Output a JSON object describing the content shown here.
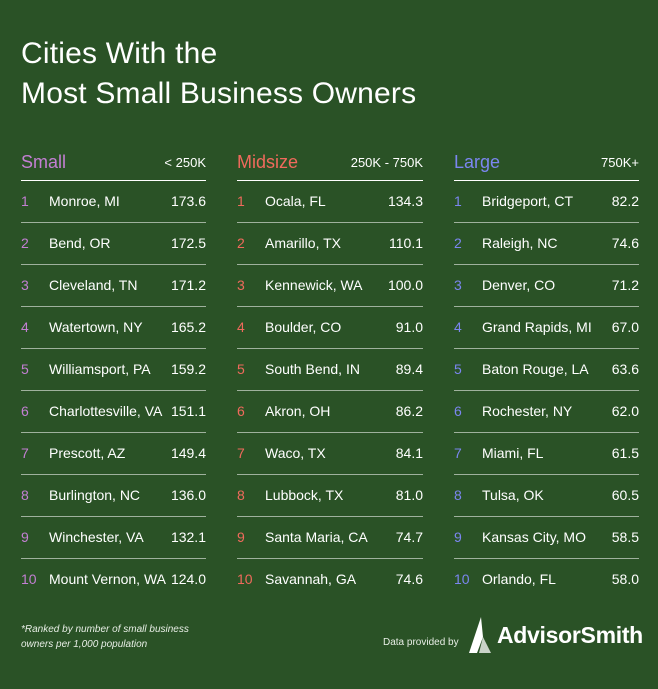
{
  "title_line1": "Cities With the",
  "title_line2": "Most Small Business Owners",
  "chart_data": {
    "type": "table",
    "columns": [
      {
        "name": "Small",
        "range": "< 250K",
        "color": "#c37fd3",
        "rows": [
          {
            "rank": "1",
            "city": "Monroe, MI",
            "value": "173.6"
          },
          {
            "rank": "2",
            "city": "Bend, OR",
            "value": "172.5"
          },
          {
            "rank": "3",
            "city": "Cleveland, TN",
            "value": "171.2"
          },
          {
            "rank": "4",
            "city": "Watertown, NY",
            "value": "165.2"
          },
          {
            "rank": "5",
            "city": "Williamsport, PA",
            "value": "159.2"
          },
          {
            "rank": "6",
            "city": "Charlottesville, VA",
            "value": "151.1"
          },
          {
            "rank": "7",
            "city": "Prescott, AZ",
            "value": "149.4"
          },
          {
            "rank": "8",
            "city": "Burlington, NC",
            "value": "136.0"
          },
          {
            "rank": "9",
            "city": "Winchester, VA",
            "value": "132.1"
          },
          {
            "rank": "10",
            "city": "Mount Vernon, WA",
            "value": "124.0"
          }
        ]
      },
      {
        "name": "Midsize",
        "range": "250K - 750K",
        "color": "#f06a5c",
        "rows": [
          {
            "rank": "1",
            "city": "Ocala, FL",
            "value": "134.3"
          },
          {
            "rank": "2",
            "city": "Amarillo, TX",
            "value": "110.1"
          },
          {
            "rank": "3",
            "city": "Kennewick, WA",
            "value": "100.0"
          },
          {
            "rank": "4",
            "city": "Boulder, CO",
            "value": "91.0"
          },
          {
            "rank": "5",
            "city": "South Bend, IN",
            "value": "89.4"
          },
          {
            "rank": "6",
            "city": "Akron, OH",
            "value": "86.2"
          },
          {
            "rank": "7",
            "city": "Waco, TX",
            "value": "84.1"
          },
          {
            "rank": "8",
            "city": "Lubbock, TX",
            "value": "81.0"
          },
          {
            "rank": "9",
            "city": "Santa Maria, CA",
            "value": "74.7"
          },
          {
            "rank": "10",
            "city": "Savannah, GA",
            "value": "74.6"
          }
        ]
      },
      {
        "name": "Large",
        "range": "750K+",
        "color": "#7b86f0",
        "rows": [
          {
            "rank": "1",
            "city": "Bridgeport, CT",
            "value": "82.2"
          },
          {
            "rank": "2",
            "city": "Raleigh, NC",
            "value": "74.6"
          },
          {
            "rank": "3",
            "city": "Denver, CO",
            "value": "71.2"
          },
          {
            "rank": "4",
            "city": "Grand Rapids, MI",
            "value": "67.0"
          },
          {
            "rank": "5",
            "city": "Baton Rouge, LA",
            "value": "63.6"
          },
          {
            "rank": "6",
            "city": "Rochester, NY",
            "value": "62.0"
          },
          {
            "rank": "7",
            "city": "Miami, FL",
            "value": "61.5"
          },
          {
            "rank": "8",
            "city": "Tulsa, OK",
            "value": "60.5"
          },
          {
            "rank": "9",
            "city": "Kansas City, MO",
            "value": "58.5"
          },
          {
            "rank": "10",
            "city": "Orlando, FL",
            "value": "58.0"
          }
        ]
      }
    ]
  },
  "footnote_line1": "*Ranked by number of small business",
  "footnote_line2": "owners per 1,000 population",
  "provider_text": "Data provided by",
  "brand": "AdvisorSmith",
  "logo_icon": "advisorsmith-logo-icon",
  "background_color": "#2a5226"
}
